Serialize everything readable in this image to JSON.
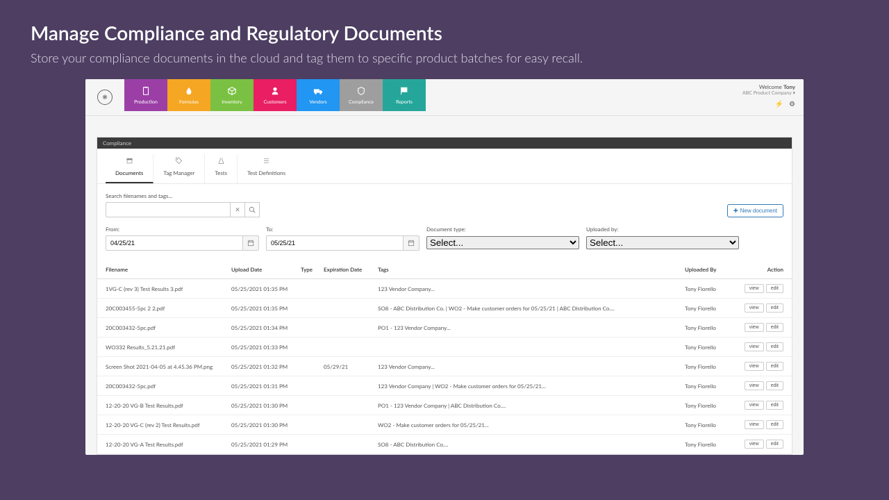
{
  "header": {
    "title": "Manage Compliance and Regulatory Documents",
    "subtitle": "Store your compliance documents in the cloud and tag them to specific product batches for easy recall."
  },
  "user": {
    "welcome_prefix": "Welcome ",
    "name": "Tony",
    "company": "ABC Product Company ▾"
  },
  "nav": [
    {
      "label": "Production",
      "color": "#9b3fa6",
      "icon": "clipboard"
    },
    {
      "label": "Formulas",
      "color": "#f5a623",
      "icon": "drop"
    },
    {
      "label": "Inventory",
      "color": "#7ac143",
      "icon": "box"
    },
    {
      "label": "Customers",
      "color": "#e91e63",
      "icon": "person"
    },
    {
      "label": "Vendors",
      "color": "#2196f3",
      "icon": "truck"
    },
    {
      "label": "Compliance",
      "color": "#9e9e9e",
      "icon": "shield"
    },
    {
      "label": "Reports",
      "color": "#26a69a",
      "icon": "flag"
    }
  ],
  "breadcrumb": "Compliance",
  "subtabs": [
    {
      "label": "Documents",
      "icon": "archive",
      "active": true
    },
    {
      "label": "Tag Manager",
      "icon": "tag",
      "active": false
    },
    {
      "label": "Tests",
      "icon": "flask",
      "active": false
    },
    {
      "label": "Test Definitions",
      "icon": "list",
      "active": false
    }
  ],
  "search": {
    "label": "Search filenames and tags...",
    "value": ""
  },
  "new_document_label": "New document",
  "filters": {
    "from_label": "From:",
    "from_value": "04/25/21",
    "to_label": "To:",
    "to_value": "05/25/21",
    "doctype_label": "Document type:",
    "doctype_value": "Select...",
    "uploaded_label": "Uploaded by:",
    "uploaded_value": "Select..."
  },
  "columns": {
    "filename": "Filename",
    "upload_date": "Upload Date",
    "type": "Type",
    "expiration": "Expiration Date",
    "tags": "Tags",
    "uploaded_by": "Uploaded By",
    "action": "Action"
  },
  "action_labels": {
    "view": "view",
    "edit": "edit"
  },
  "rows": [
    {
      "filename": "1VG-C (rev 3) Test Results 3.pdf",
      "upload": "05/25/2021 01:35 PM",
      "type": "",
      "exp": "",
      "tags": "123 Vendor Company...",
      "by": "Tony Fiorello"
    },
    {
      "filename": "20C003455-5pc 2 2.pdf",
      "upload": "05/25/2021 01:35 PM",
      "type": "",
      "exp": "",
      "tags": "SO8 - ABC Distribution Co. | WO2 - Make customer orders for 05/25/21 | ABC Distribution Co....",
      "by": "Tony Fiorello"
    },
    {
      "filename": "20C003432-5pc.pdf",
      "upload": "05/25/2021 01:34 PM",
      "type": "",
      "exp": "",
      "tags": "PO1 - 123 Vendor Company...",
      "by": "Tony Fiorello"
    },
    {
      "filename": "WO332 Results_5.21.21.pdf",
      "upload": "05/25/2021 01:33 PM",
      "type": "",
      "exp": "",
      "tags": "",
      "by": "Tony Fiorello"
    },
    {
      "filename": "Screen Shot 2021-04-05 at 4.45.36 PM.png",
      "upload": "05/25/2021 01:32 PM",
      "type": "",
      "exp": "05/29/21",
      "tags": "123 Vendor Company...",
      "by": "Tony Fiorello"
    },
    {
      "filename": "20C003432-5pc.pdf",
      "upload": "05/25/2021 01:31 PM",
      "type": "",
      "exp": "",
      "tags": "123 Vendor Company | WO2 - Make customer orders for 05/25/21...",
      "by": "Tony Fiorello"
    },
    {
      "filename": "12-20-20 VG-B Test Results.pdf",
      "upload": "05/25/2021 01:30 PM",
      "type": "",
      "exp": "",
      "tags": "PO1 - 123 Vendor Company | ABC Distribution Co....",
      "by": "Tony Fiorello"
    },
    {
      "filename": "12-20-20 VG-C (rev 2) Test Results.pdf",
      "upload": "05/25/2021 01:30 PM",
      "type": "",
      "exp": "",
      "tags": "WO2 - Make customer orders for 05/25/21...",
      "by": "Tony Fiorello"
    },
    {
      "filename": "12-20-20 VG-A Test Results.pdf",
      "upload": "05/25/2021 01:29 PM",
      "type": "",
      "exp": "",
      "tags": "SO8 - ABC Distribution Co....",
      "by": "Tony Fiorello"
    }
  ]
}
